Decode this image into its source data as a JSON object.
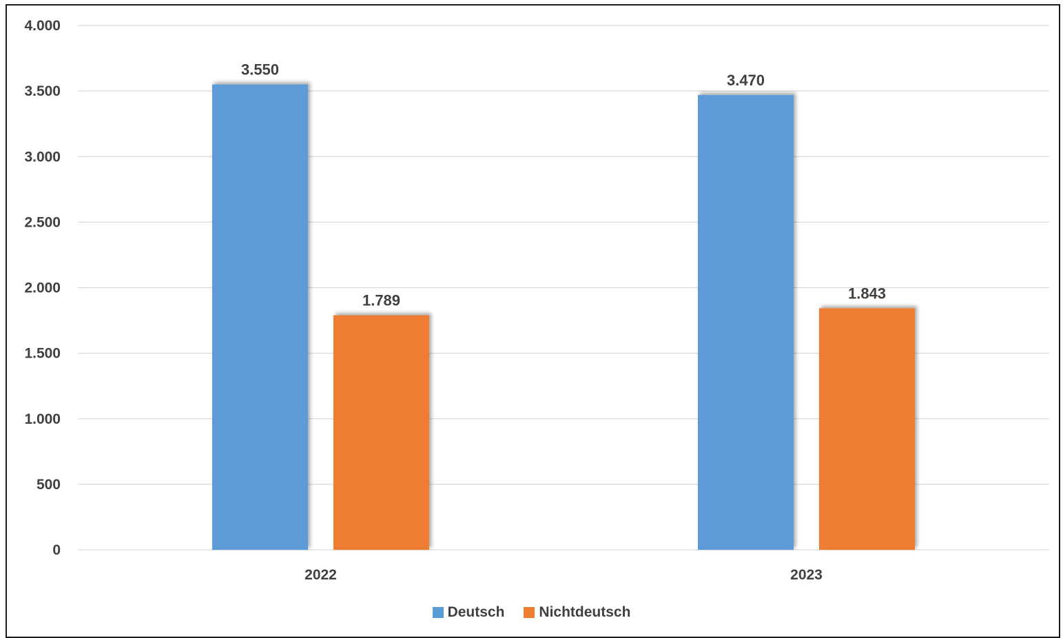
{
  "chart_data": {
    "type": "bar",
    "title": "",
    "xlabel": "",
    "ylabel": "",
    "categories": [
      "2022",
      "2023"
    ],
    "series": [
      {
        "name": "Deutsch",
        "values": [
          3550,
          3470
        ],
        "labels": [
          "3.550",
          "3.470"
        ],
        "color": "#5B9BD5"
      },
      {
        "name": "Nichtdeutsch",
        "values": [
          1789,
          1843
        ],
        "labels": [
          "1.789",
          "1.843"
        ],
        "color": "#ED7D31"
      }
    ],
    "ylim": [
      0,
      4000
    ],
    "yticks": [
      0,
      500,
      1000,
      1500,
      2000,
      2500,
      3000,
      3500,
      4000
    ],
    "ytick_labels": [
      "0",
      "500",
      "1.000",
      "1.500",
      "2.000",
      "2.500",
      "3.000",
      "3.500",
      "4.000"
    ],
    "grid": true,
    "legend_position": "bottom",
    "gridline_color": "#D9D9D9"
  }
}
